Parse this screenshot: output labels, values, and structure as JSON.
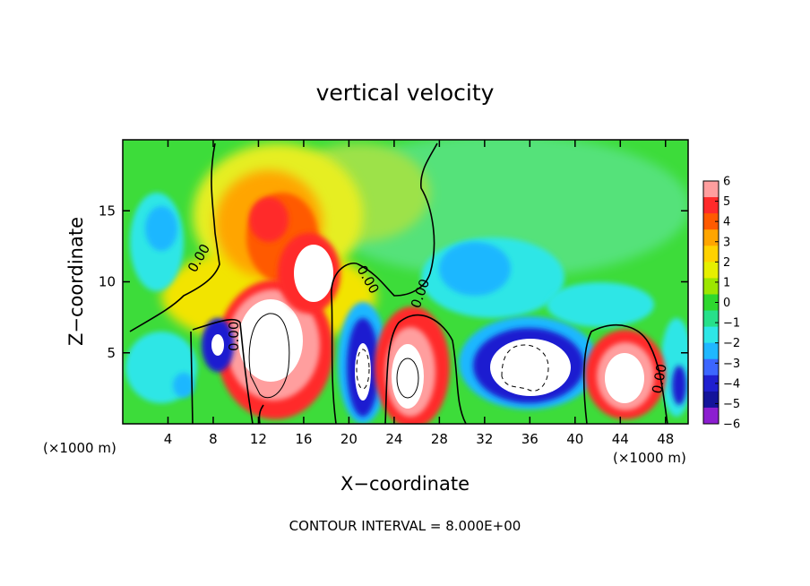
{
  "chart_data": {
    "type": "heatmap",
    "title": "vertical velocity",
    "xlabel": "X−coordinate",
    "ylabel": "Z−coordinate",
    "x_unit_left": "(×1000 m)",
    "x_unit_right": "(×1000 m)",
    "footer": "CONTOUR INTERVAL = 8.000E+00",
    "xlim": [
      0,
      50
    ],
    "ylim": [
      0,
      20
    ],
    "x_ticks": [
      4,
      8,
      12,
      16,
      20,
      24,
      28,
      32,
      36,
      40,
      44,
      48
    ],
    "x_tick_labels": [
      "4",
      "8",
      "12",
      "16",
      "20",
      "24",
      "28",
      "32",
      "36",
      "40",
      "44",
      "48"
    ],
    "y_ticks": [
      5,
      10,
      15
    ],
    "y_tick_labels": [
      "5",
      "10",
      "15"
    ],
    "zero_contour_label": "0.00",
    "colorbar": {
      "min": -6,
      "max": 6,
      "tick_labels": [
        "6",
        "5",
        "4",
        "3",
        "2",
        "1",
        "0",
        "−1",
        "−2",
        "−3",
        "−4",
        "−5",
        "−6"
      ],
      "tick_values": [
        6,
        5,
        4,
        3,
        2,
        1,
        0,
        -1,
        -2,
        -3,
        -4,
        -5,
        -6
      ],
      "colors": [
        "#ff9e9e",
        "#ff2a2a",
        "#ff5a00",
        "#ffa500",
        "#ffd200",
        "#e6ef00",
        "#9de600",
        "#2ed82e",
        "#27e08a",
        "#2ee6e6",
        "#1fb7ff",
        "#3c66ff",
        "#1f1fd0",
        "#14149a",
        "#8c1ed0"
      ]
    },
    "features": [
      {
        "kind": "updraft",
        "x": 14,
        "z": 5.2,
        "peak": 8
      },
      {
        "kind": "updraft",
        "x": 17.5,
        "z": 11,
        "peak": 7
      },
      {
        "kind": "updraft",
        "x": 12.5,
        "z": 14.5,
        "peak": 5
      },
      {
        "kind": "updraft",
        "x": 25,
        "z": 3.2,
        "peak": 8
      },
      {
        "kind": "updraft",
        "x": 44,
        "z": 3.3,
        "peak": 7.5
      },
      {
        "kind": "downdraft",
        "x": 9,
        "z": 5,
        "peak": -6
      },
      {
        "kind": "downdraft",
        "x": 21.5,
        "z": 3.8,
        "peak": -7
      },
      {
        "kind": "downdraft",
        "x": 35.5,
        "z": 4,
        "peak": -8
      },
      {
        "kind": "downdraft",
        "x": 32,
        "z": 10,
        "peak": -3.5
      },
      {
        "kind": "downdraft",
        "x": 3.5,
        "z": 14,
        "peak": -3
      },
      {
        "kind": "downdraft",
        "x": 48.5,
        "z": 3,
        "peak": -3
      }
    ]
  }
}
